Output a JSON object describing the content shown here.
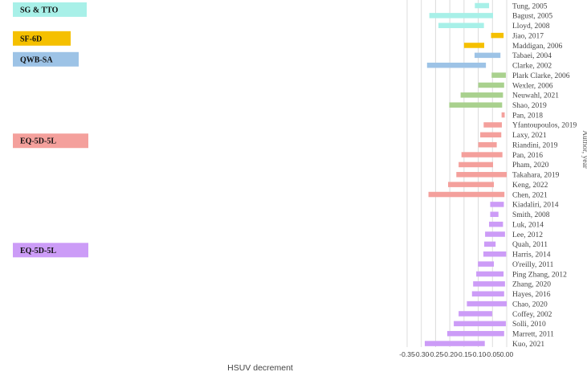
{
  "chart_data": {
    "type": "bar",
    "orientation": "horizontal-range",
    "xlabel": "HSUV decrement",
    "ylabel": "Author, year",
    "xlim": [
      -0.35,
      0.0
    ],
    "xticks": [
      "-0.35",
      "-0.30",
      "-0.25",
      "-0.20",
      "-0.15",
      "-0.10",
      "-0.05",
      "0.00"
    ],
    "xtick_values": [
      -0.35,
      -0.3,
      -0.25,
      -0.2,
      -0.15,
      -0.1,
      -0.05,
      0.0
    ],
    "grid": "vertical",
    "groups": [
      {
        "label": "SG & TTO",
        "color": "#a8f0e8",
        "studies": [
          {
            "name": "Tung, 2005",
            "low": -0.112,
            "high": -0.062
          },
          {
            "name": "Bagust, 2005",
            "low": -0.272,
            "high": -0.048
          },
          {
            "name": "Lloyd, 2008",
            "low": -0.24,
            "high": -0.08
          }
        ]
      },
      {
        "label": "SF-6D",
        "color": "#f5c000",
        "studies": [
          {
            "name": "Jiao, 2017",
            "low": -0.055,
            "high": -0.011
          },
          {
            "name": "Maddigan, 2006",
            "low": -0.15,
            "high": -0.079
          }
        ]
      },
      {
        "label": "QWB-SA",
        "color": "#9dc3e6",
        "studies": [
          {
            "name": "Tabaei, 2004",
            "low": -0.113,
            "high": -0.022
          },
          {
            "name": "Clarke, 2002",
            "low": -0.28,
            "high": -0.073
          }
        ]
      },
      {
        "label": "",
        "color": "#a9d18e",
        "studies": [
          {
            "name": "Plark Clarke, 2006",
            "low": -0.053,
            "high": -0.003
          },
          {
            "name": "Wexler, 2006",
            "low": -0.1,
            "high": -0.009
          },
          {
            "name": "Neuwahl, 2021",
            "low": -0.162,
            "high": -0.013
          },
          {
            "name": "Shao, 2019",
            "low": -0.202,
            "high": -0.016
          }
        ]
      },
      {
        "label": "EQ-5D-5L",
        "color": "#f4a09c",
        "studies": [
          {
            "name": "Pan, 2018",
            "low": -0.018,
            "high": -0.007
          },
          {
            "name": "Yfantoupoulos, 2019",
            "low": -0.081,
            "high": -0.017
          },
          {
            "name": "Laxy, 2021",
            "low": -0.093,
            "high": -0.019
          },
          {
            "name": "Riandini, 2019",
            "low": -0.1,
            "high": -0.035
          },
          {
            "name": "Pan, 2016",
            "low": -0.159,
            "high": -0.015
          },
          {
            "name": "Pham, 2020",
            "low": -0.169,
            "high": -0.048
          },
          {
            "name": "Takahara, 2019",
            "low": -0.177,
            "high": 0.0
          },
          {
            "name": "Keng, 2022",
            "low": -0.206,
            "high": -0.045
          },
          {
            "name": "Chen, 2021",
            "low": -0.275,
            "high": -0.008
          }
        ]
      },
      {
        "label": "EQ-5D-5L",
        "color": "#cc9cf7",
        "studies": [
          {
            "name": "Kiadaliri, 2014",
            "low": -0.058,
            "high": -0.01
          },
          {
            "name": "Smith, 2008",
            "low": -0.058,
            "high": -0.029
          },
          {
            "name": "Luk, 2014",
            "low": -0.062,
            "high": -0.013
          },
          {
            "name": "Lee, 2012",
            "low": -0.076,
            "high": -0.006
          },
          {
            "name": "Quah, 2011",
            "low": -0.079,
            "high": -0.039
          },
          {
            "name": "Harris, 2014",
            "low": -0.082,
            "high": -0.002
          },
          {
            "name": "O'reilly, 2011",
            "low": -0.101,
            "high": -0.045
          },
          {
            "name": "Ping Zhang, 2012",
            "low": -0.107,
            "high": -0.011
          },
          {
            "name": "Zhang, 2020",
            "low": -0.118,
            "high": -0.006
          },
          {
            "name": "Hayes, 2016",
            "low": -0.122,
            "high": -0.009
          },
          {
            "name": "Chao, 2020",
            "low": -0.14,
            "high": 0.0
          },
          {
            "name": "Coffey, 2002",
            "low": -0.169,
            "high": -0.051
          },
          {
            "name": "Solli, 2010",
            "low": -0.186,
            "high": -0.003
          },
          {
            "name": "Marrett, 2011",
            "low": -0.209,
            "high": -0.009
          },
          {
            "name": "Kuo, 2021",
            "low": -0.288,
            "high": -0.077
          }
        ]
      }
    ]
  }
}
